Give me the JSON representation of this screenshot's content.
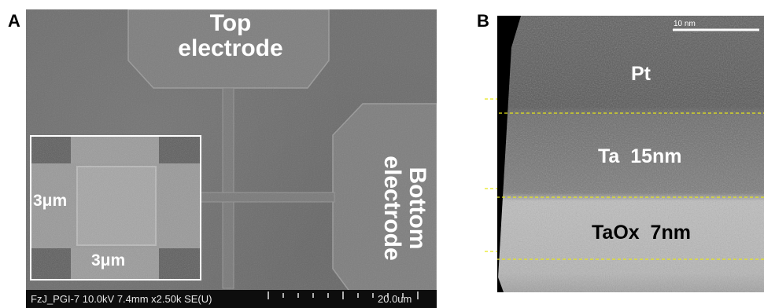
{
  "panel_a": {
    "letter": "A",
    "top_electrode_label": [
      "Top",
      "electrode"
    ],
    "bottom_electrode_label": [
      "Bottom",
      "electrode"
    ],
    "inset": {
      "side_label": "3μm",
      "bottom_label": "3μm"
    },
    "info_bar": {
      "metadata": "FzJ_PGI-7 10.0kV 7.4mm x2.50k SE(U)",
      "scale_label": "20.0um"
    }
  },
  "panel_b": {
    "letter": "B",
    "scale_label": "10 nm",
    "layers": [
      {
        "label": "Pt",
        "text_color": "#ffffff"
      },
      {
        "label": "Ta  15nm",
        "text_color": "#ffffff"
      },
      {
        "label": "TaOx  7nm",
        "text_color": "#000000"
      }
    ],
    "boundary_line_color": "#e6e619"
  },
  "colors": {
    "sem_background": "#6d6d6d",
    "electrode": "#7d7d7d",
    "info_bar": "#0d0d0d"
  }
}
